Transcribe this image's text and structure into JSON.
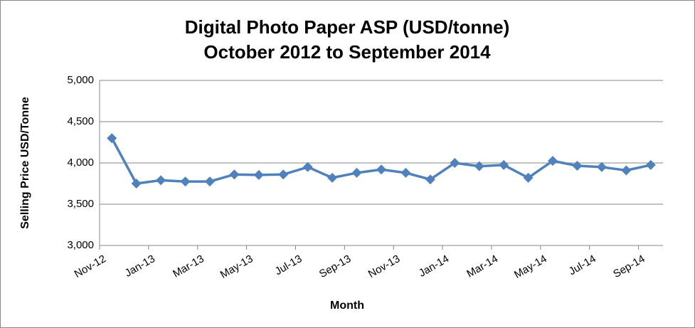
{
  "chart_data": {
    "type": "line",
    "title": [
      "Digital Photo Paper ASP (USD/tonne)",
      "October 2012 to September 2014"
    ],
    "x_label": "Month",
    "y_label": "Selling Price USD/Tonne",
    "categories": [
      "Nov-12",
      null,
      "Jan-13",
      null,
      "Mar-13",
      null,
      "May-13",
      null,
      "Jul-13",
      null,
      "Sep-13",
      null,
      "Nov-13",
      null,
      "Jan-14",
      null,
      "Mar-14",
      null,
      "May-14",
      null,
      "Jul-14",
      null,
      "Sep-14"
    ],
    "series": [
      {
        "name": "ASP",
        "color": "#4f81bd",
        "values": [
          4300,
          3750,
          3790,
          3775,
          3775,
          3860,
          3855,
          3860,
          3950,
          3820,
          3880,
          3920,
          3880,
          3800,
          4000,
          3960,
          3975,
          3820,
          4025,
          3965,
          3950,
          3910,
          3975
        ]
      }
    ],
    "ylim": [
      3000,
      5000
    ],
    "yticks": [
      {
        "value": 3000,
        "label": "3,000"
      },
      {
        "value": 3500,
        "label": "3,500"
      },
      {
        "value": 4000,
        "label": "4,000"
      },
      {
        "value": 4500,
        "label": "4,500"
      },
      {
        "value": 5000,
        "label": "5,000"
      }
    ],
    "grid": true
  }
}
